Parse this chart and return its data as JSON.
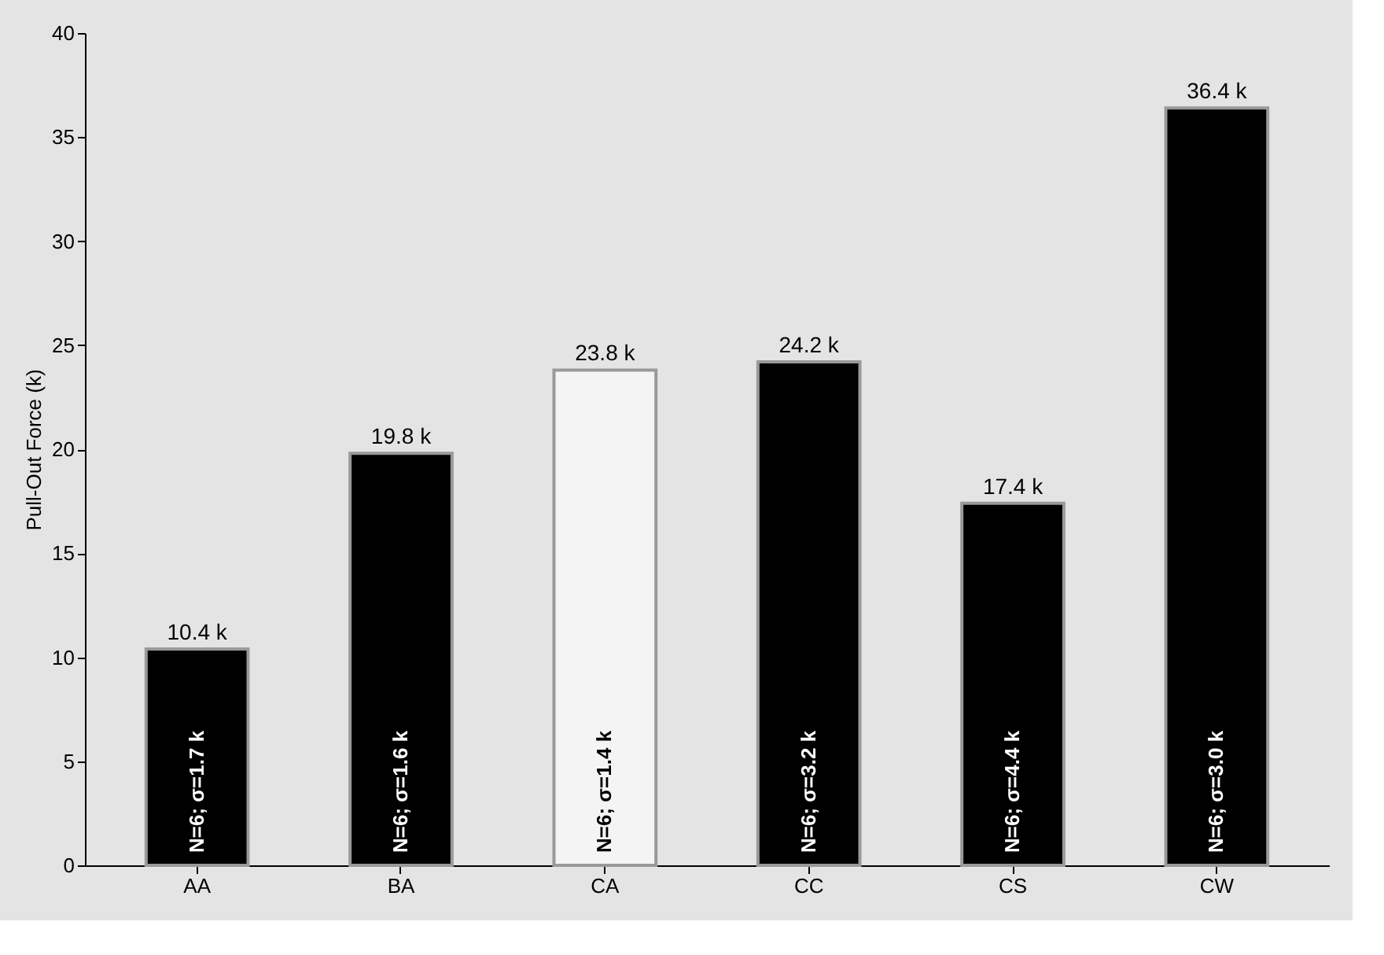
{
  "chart_data": {
    "type": "bar",
    "ylabel": "Pull-Out Force (k)",
    "categories": [
      "AA",
      "BA",
      "CA",
      "CC",
      "CS",
      "CW"
    ],
    "values": [
      10.4,
      19.8,
      23.8,
      24.2,
      17.4,
      36.4
    ],
    "colors": [
      "#000000",
      "#000000",
      "#f4f4f4",
      "#000000",
      "#000000",
      "#000000"
    ],
    "value_labels": [
      "10.4 k",
      "19.8 k",
      "23.8 k",
      "24.2 k",
      "17.4 k",
      "36.4 k"
    ],
    "ylim": [
      0,
      40
    ],
    "yticks": [
      0,
      5,
      10,
      15,
      20,
      25,
      30,
      35,
      40
    ],
    "grid": false,
    "annotations": [
      "N=6; σ=1.7 k",
      "N=6; σ=1.6 k",
      "N=6; σ=1.4 k",
      "N=6; σ=3.2 k",
      "N=6; σ=4.4 k",
      "N=6; σ=3.0 k"
    ]
  }
}
